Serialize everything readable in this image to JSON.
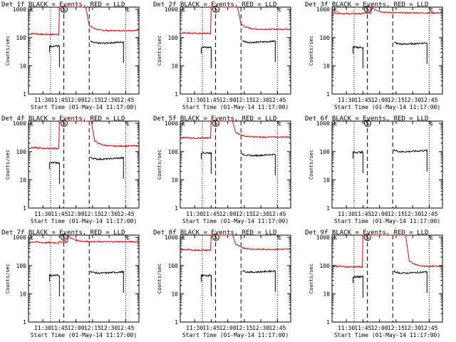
{
  "chart_data": {
    "type": "line",
    "layout": {
      "rows": 3,
      "cols": 3
    },
    "xlabel": "Start Time (01-May-14 11:17:00)",
    "ylabel": "Counts/sec",
    "x_tick_labels": [
      "11:30",
      "11:45",
      "12:00",
      "12:15",
      "12:30",
      "12:45"
    ],
    "x_ticks_min": [
      13,
      28,
      43,
      58,
      73,
      88
    ],
    "xlim_min": [
      0,
      100
    ],
    "y_scale": "log",
    "ylim": [
      1,
      1200
    ],
    "y_tick_labels": [
      "1",
      "10",
      "100",
      "1000"
    ],
    "y_ticks": [
      1,
      10,
      100,
      1000
    ],
    "series_colors": {
      "events": "#000000",
      "lld": "#e00000"
    },
    "markers_min": {
      "dotted": [
        20,
        88
      ],
      "dashed": [
        32,
        55
      ]
    },
    "marker_labels": [
      {
        "text": "E",
        "x": 0
      },
      {
        "text": "S",
        "x": 29
      },
      {
        "text": "E",
        "x": 87
      }
    ],
    "panels": [
      {
        "title": "Det 1f BLACK = Events, RED = LLD",
        "events": {
          "start": 19,
          "pre": 50,
          "post": 70,
          "end": 86
        },
        "lld": {
          "pre": 130,
          "post": 170,
          "end": 180,
          "rise": 28,
          "decay_to": 55,
          "flat": false
        }
      },
      {
        "title": "Det 2f BLACK = Events, RED = LLD",
        "events": {
          "start": 19,
          "pre": 45,
          "post": 75,
          "end": 86
        },
        "lld": {
          "pre": 140,
          "post": 190,
          "end": 200,
          "rise": 28,
          "decay_to": 55,
          "flat": false
        }
      },
      {
        "title": "Det 3f BLACK = Events, RED = LLD",
        "events": {
          "start": 19,
          "pre": 45,
          "post": 65,
          "end": 86
        },
        "lld": {
          "pre": 700,
          "post": 750,
          "end": 750,
          "rise": 28,
          "decay_to": 36,
          "flat": true
        }
      },
      {
        "title": "Det 4f BLACK = Events, RED = LLD",
        "events": {
          "start": 19,
          "pre": 40,
          "post": 60,
          "end": 86
        },
        "lld": {
          "pre": 130,
          "post": 150,
          "end": 160,
          "rise": 28,
          "decay_to": 60,
          "flat": false
        }
      },
      {
        "title": "Det 5f BLACK = Events, RED = LLD",
        "events": {
          "start": 19,
          "pre": 90,
          "post": 80,
          "end": 86
        },
        "lld": {
          "pre": 300,
          "post": 320,
          "end": 330,
          "rise": 28,
          "decay_to": 50,
          "flat": false
        }
      },
      {
        "title": "Det 6f BLACK = Events, RED = LLD",
        "events": {
          "start": 19,
          "pre": 95,
          "post": 110,
          "end": 86
        },
        "lld": null
      },
      {
        "title": "Det 7f BLACK = Events, RED = LLD",
        "events": {
          "start": 19,
          "pre": 45,
          "post": 60,
          "end": 86
        },
        "lld": {
          "pre": 650,
          "post": 700,
          "end": 700,
          "rise": 28,
          "decay_to": 36,
          "flat": true
        }
      },
      {
        "title": "Det 8f BLACK = Events, RED = LLD",
        "events": {
          "start": 19,
          "pre": 45,
          "post": 65,
          "end": 86
        },
        "lld": {
          "pre": 350,
          "post": 370,
          "end": 380,
          "rise": 28,
          "decay_to": 50,
          "flat": false
        }
      },
      {
        "title": "Det 9f BLACK = Events, RED = LLD",
        "events": {
          "start": 19,
          "pre": 40,
          "post": 60,
          "end": 86
        },
        "lld": {
          "pre": 90,
          "post": 90,
          "end": 95,
          "rise": 28,
          "decay_to": 70,
          "flat": false
        }
      }
    ]
  }
}
